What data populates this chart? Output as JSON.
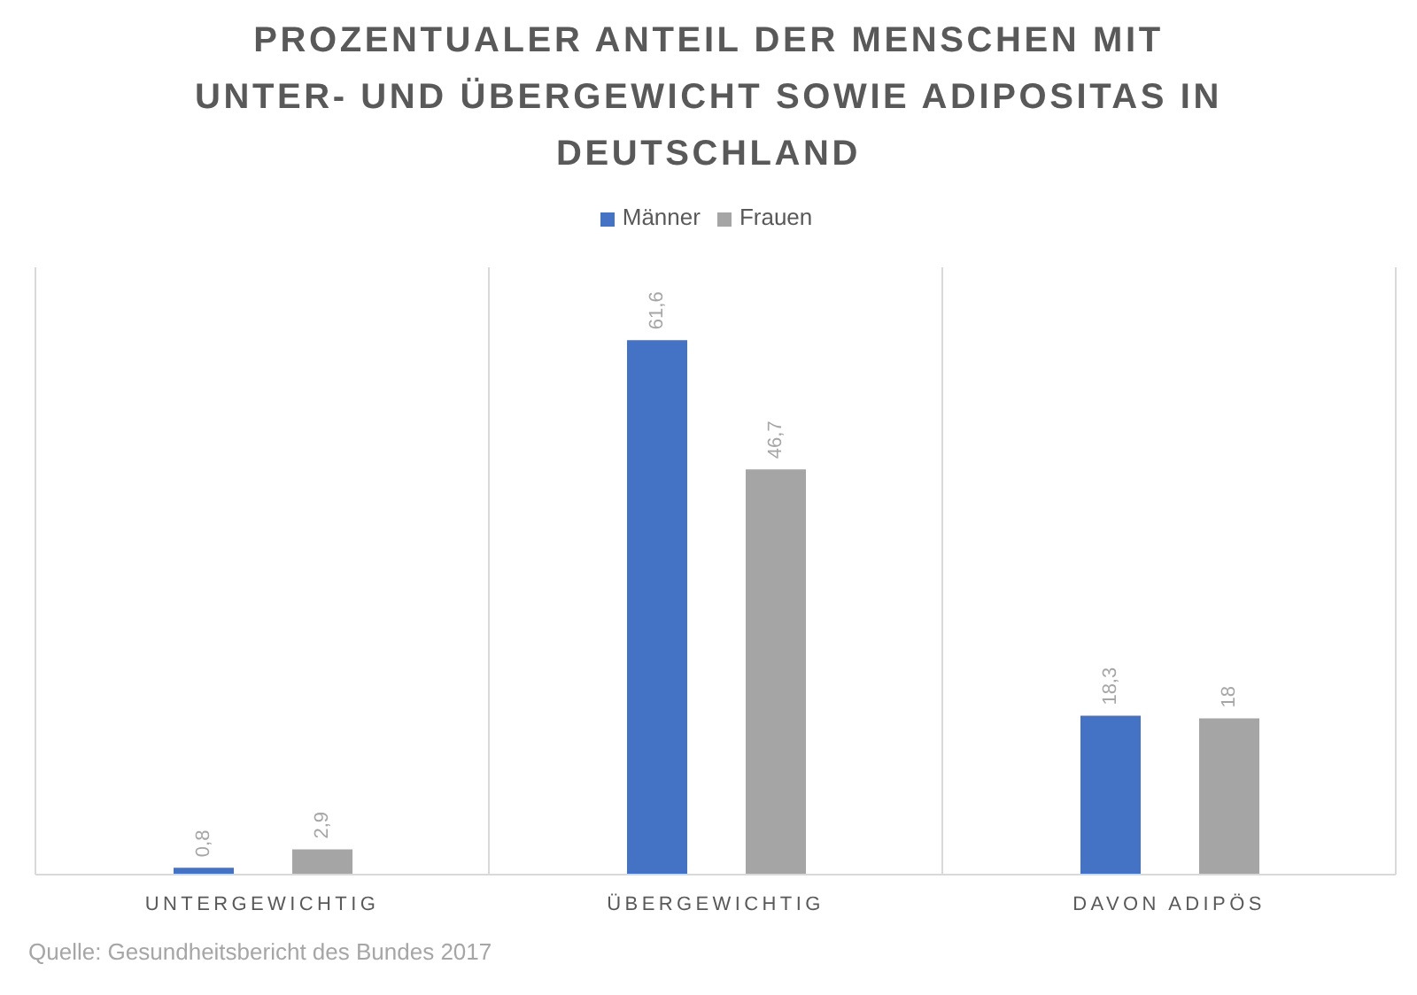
{
  "chart_data": {
    "type": "bar",
    "title": "PROZENTUALER ANTEIL DER MENSCHEN MIT UNTER- UND ÜBERGEWICHT SOWIE ADIPOSITAS IN DEUTSCHLAND",
    "categories": [
      "UNTERGEWICHTIG",
      "ÜBERGEWICHTIG",
      "DAVON ADIPÖS"
    ],
    "series": [
      {
        "name": "Männer",
        "color": "#4472c4",
        "values": [
          0.8,
          61.6,
          18.3
        ],
        "value_labels": [
          "0,8",
          "61,6",
          "18,3"
        ]
      },
      {
        "name": "Frauen",
        "color": "#a5a5a5",
        "values": [
          2.9,
          46.7,
          18
        ],
        "value_labels": [
          "2,9",
          "46,7",
          "18"
        ]
      }
    ],
    "legend": "top",
    "grid": "x",
    "tick_labels": "x",
    "annotations": [
      "Quelle: Gesundheitsbericht des Bundes 2017"
    ]
  }
}
